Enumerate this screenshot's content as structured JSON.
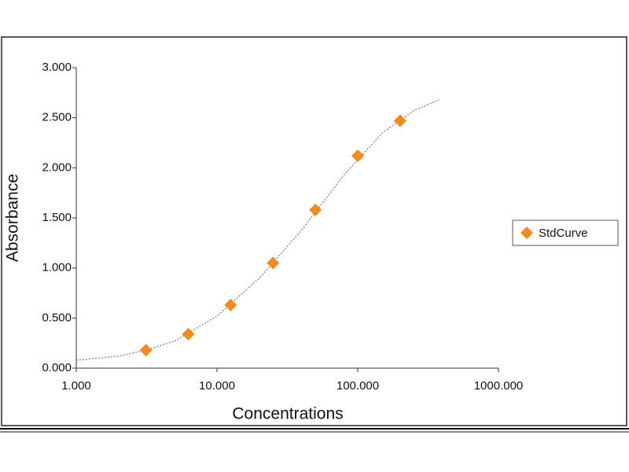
{
  "chart_data": {
    "type": "scatter",
    "x_label": "Concentrations",
    "y_label": "Absorbance",
    "xscale": "log",
    "xlim": [
      1,
      1000
    ],
    "xticks": [
      {
        "value": 1,
        "label": "1.000"
      },
      {
        "value": 10,
        "label": "10.000"
      },
      {
        "value": 100,
        "label": "100.000"
      },
      {
        "value": 1000,
        "label": "1000.000"
      }
    ],
    "ylim": [
      0,
      3
    ],
    "yticks": [
      {
        "value": 0,
        "label": "0.000"
      },
      {
        "value": 0.5,
        "label": "0.500"
      },
      {
        "value": 1,
        "label": "1.000"
      },
      {
        "value": 1.5,
        "label": "1.500"
      },
      {
        "value": 2,
        "label": "2.000"
      },
      {
        "value": 2.5,
        "label": "2.500"
      },
      {
        "value": 3,
        "label": "3.000"
      }
    ],
    "legend": "right",
    "series": [
      {
        "name": "StdCurve",
        "color": "#f28a1c",
        "x": [
          3.125,
          6.25,
          12.5,
          25,
          50,
          100,
          200
        ],
        "values": [
          0.18,
          0.34,
          0.63,
          1.05,
          1.58,
          2.12,
          2.47
        ]
      }
    ],
    "fit_curve": {
      "color": "#777777",
      "x": [
        1,
        2,
        3.125,
        5,
        10,
        20,
        40,
        80,
        150,
        250,
        380
      ],
      "values": [
        0.08,
        0.12,
        0.18,
        0.27,
        0.52,
        0.9,
        1.38,
        1.93,
        2.35,
        2.57,
        2.68
      ]
    }
  }
}
